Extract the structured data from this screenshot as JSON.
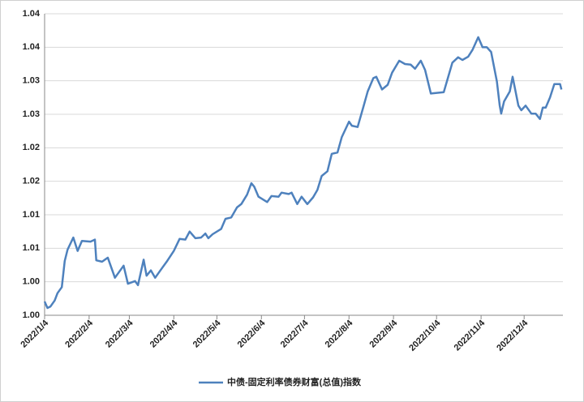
{
  "chart_data": {
    "type": "line",
    "x": [
      "2022-01-04",
      "2022-01-06",
      "2022-01-08",
      "2022-01-11",
      "2022-01-13",
      "2022-01-16",
      "2022-01-18",
      "2022-01-20",
      "2022-01-24",
      "2022-01-27",
      "2022-01-30",
      "2022-02-05",
      "2022-02-08",
      "2022-02-09",
      "2022-02-13",
      "2022-02-17",
      "2022-02-22",
      "2022-02-28",
      "2022-03-03",
      "2022-03-08",
      "2022-03-10",
      "2022-03-14",
      "2022-03-16",
      "2022-03-19",
      "2022-03-22",
      "2022-03-27",
      "2022-03-30",
      "2022-04-04",
      "2022-04-08",
      "2022-04-12",
      "2022-04-15",
      "2022-04-19",
      "2022-04-23",
      "2022-04-26",
      "2022-04-28",
      "2022-05-01",
      "2022-05-07",
      "2022-05-10",
      "2022-05-14",
      "2022-05-18",
      "2022-05-21",
      "2022-05-25",
      "2022-05-28",
      "2022-05-30",
      "2022-06-02",
      "2022-06-08",
      "2022-06-11",
      "2022-06-16",
      "2022-06-18",
      "2022-06-23",
      "2022-06-25",
      "2022-06-29",
      "2022-07-02",
      "2022-07-06",
      "2022-07-10",
      "2022-07-13",
      "2022-07-16",
      "2022-07-20",
      "2022-07-23",
      "2022-07-27",
      "2022-07-30",
      "2022-08-04",
      "2022-08-06",
      "2022-08-10",
      "2022-08-14",
      "2022-08-17",
      "2022-08-21",
      "2022-08-23",
      "2022-08-27",
      "2022-08-31",
      "2022-09-03",
      "2022-09-08",
      "2022-09-12",
      "2022-09-16",
      "2022-09-19",
      "2022-09-23",
      "2022-09-26",
      "2022-09-30",
      "2022-10-09",
      "2022-10-12",
      "2022-10-15",
      "2022-10-19",
      "2022-10-22",
      "2022-10-26",
      "2022-10-29",
      "2022-11-02",
      "2022-11-05",
      "2022-11-08",
      "2022-11-11",
      "2022-11-15",
      "2022-11-17",
      "2022-11-18",
      "2022-11-20",
      "2022-11-24",
      "2022-11-26",
      "2022-11-30",
      "2022-12-02",
      "2022-12-05",
      "2022-12-09",
      "2022-12-12",
      "2022-12-15",
      "2022-12-17",
      "2022-12-19",
      "2022-12-22",
      "2022-12-25",
      "2022-12-29",
      "2022-12-30"
    ],
    "series": [
      {
        "name": "中债-固定利率债券财富(总值)指数",
        "color": "#4e81bd",
        "values": [
          0.99706,
          0.99609,
          0.9963,
          0.9972,
          0.9983,
          0.9992,
          1.0031,
          1.0048,
          1.0066,
          1.0046,
          1.0061,
          1.006,
          1.0063,
          1.0032,
          1.003,
          1.0036,
          1.0006,
          1.0024,
          0.9997,
          1.0001,
          0.9995,
          1.0033,
          1.0009,
          1.0017,
          1.0006,
          1.0021,
          1.003,
          1.0046,
          1.0064,
          1.0063,
          1.0075,
          1.0065,
          1.0066,
          1.0072,
          1.0065,
          1.0071,
          1.0079,
          1.0094,
          1.0096,
          1.0111,
          1.0116,
          1.013,
          1.0147,
          1.0142,
          1.0127,
          1.0119,
          1.0128,
          1.0127,
          1.0133,
          1.0131,
          1.0133,
          1.0116,
          1.0127,
          1.0116,
          1.0126,
          1.0137,
          1.0158,
          1.0165,
          1.0191,
          1.0193,
          1.0216,
          1.0239,
          1.0233,
          1.0231,
          1.0261,
          1.0284,
          1.0304,
          1.0306,
          1.0287,
          1.0294,
          1.0312,
          1.033,
          1.0325,
          1.0324,
          1.0318,
          1.033,
          1.0316,
          1.0281,
          1.0283,
          1.0305,
          1.0327,
          1.0335,
          1.0331,
          1.0336,
          1.0346,
          1.0365,
          1.035,
          1.035,
          1.0343,
          1.0299,
          1.0263,
          1.0251,
          1.0269,
          1.0284,
          1.0306,
          1.0263,
          1.0256,
          1.0263,
          1.0251,
          1.0251,
          1.0243,
          1.026,
          1.026,
          1.0275,
          1.0295,
          1.0295,
          1.0287
        ]
      }
    ],
    "xlim": [
      "2022-01-04",
      "2022-12-31"
    ],
    "xticks": [
      {
        "value": "2022-01-04",
        "label": "2022/1/4"
      },
      {
        "value": "2022-02-04",
        "label": "2022/2/4"
      },
      {
        "value": "2022-03-04",
        "label": "2022/3/4"
      },
      {
        "value": "2022-04-04",
        "label": "2022/4/4"
      },
      {
        "value": "2022-05-04",
        "label": "2022/5/4"
      },
      {
        "value": "2022-06-04",
        "label": "2022/6/4"
      },
      {
        "value": "2022-07-04",
        "label": "2022/7/4"
      },
      {
        "value": "2022-08-04",
        "label": "2022/8/4"
      },
      {
        "value": "2022-09-04",
        "label": "2022/9/4"
      },
      {
        "value": "2022-10-04",
        "label": "2022/10/4"
      },
      {
        "value": "2022-11-04",
        "label": "2022/11/4"
      },
      {
        "value": "2022-12-04",
        "label": "2022/12/4"
      }
    ],
    "ylim": [
      0.995,
      1.04
    ],
    "yticks": [
      {
        "value": 0.995,
        "label": "1.00"
      },
      {
        "value": 1.0,
        "label": "1.00"
      },
      {
        "value": 1.005,
        "label": "1.01"
      },
      {
        "value": 1.01,
        "label": "1.01"
      },
      {
        "value": 1.015,
        "label": "1.02"
      },
      {
        "value": 1.02,
        "label": "1.02"
      },
      {
        "value": 1.025,
        "label": "1.03"
      },
      {
        "value": 1.03,
        "label": "1.03"
      },
      {
        "value": 1.035,
        "label": "1.04"
      },
      {
        "value": 1.04,
        "label": "1.04"
      }
    ],
    "grid": true
  }
}
